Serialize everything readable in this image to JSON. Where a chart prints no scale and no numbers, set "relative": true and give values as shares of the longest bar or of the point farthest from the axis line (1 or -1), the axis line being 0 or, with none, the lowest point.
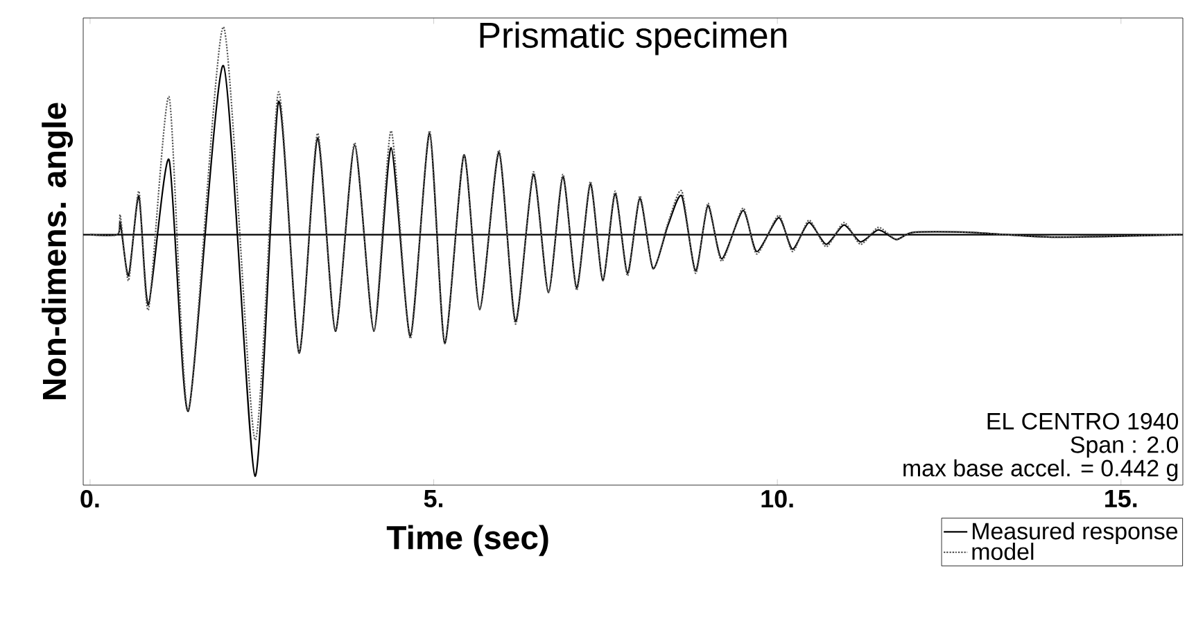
{
  "chart_data": {
    "type": "line",
    "title": "Prismatic specimen",
    "xlabel": "Time (sec)",
    "ylabel": "Non-dimens. angle",
    "annotations": [
      "EL CENTRO 1940",
      "Span : 2.0",
      "max base accel. = 0.442 g"
    ],
    "relative": true,
    "tick_labels": "x",
    "legend": "bottom right",
    "marker": "none",
    "xlim": [
      -0.1,
      15.9
    ],
    "xticks": [
      {
        "value": 0,
        "label": "0."
      },
      {
        "value": 5,
        "label": "5."
      },
      {
        "value": 10,
        "label": "10."
      },
      {
        "value": 15,
        "label": "15."
      }
    ],
    "x": [
      0,
      0.4,
      0.44,
      0.56,
      0.71,
      0.85,
      1.15,
      1.43,
      1.94,
      2.4,
      2.74,
      3.04,
      3.31,
      3.57,
      3.85,
      4.13,
      4.38,
      4.66,
      4.94,
      5.16,
      5.44,
      5.67,
      5.95,
      6.19,
      6.45,
      6.67,
      6.88,
      7.08,
      7.28,
      7.46,
      7.64,
      7.82,
      8.0,
      8.19,
      8.41,
      8.61,
      8.81,
      8.99,
      9.19,
      9.5,
      9.7,
      10.02,
      10.22,
      10.46,
      10.71,
      10.97,
      11.21,
      11.47,
      11.73,
      11.98,
      12.78,
      13.99,
      15.87
    ],
    "series": [
      {
        "name": "Measured response",
        "color": "#000000",
        "line_style": "solid",
        "values": [
          0,
          0,
          0.05,
          -0.17,
          0.16,
          -0.29,
          0.31,
          -0.73,
          0.7,
          -1.0,
          0.55,
          -0.49,
          0.4,
          -0.4,
          0.37,
          -0.4,
          0.36,
          -0.42,
          0.42,
          -0.45,
          0.33,
          -0.31,
          0.34,
          -0.36,
          0.25,
          -0.24,
          0.24,
          -0.22,
          0.21,
          -0.19,
          0.17,
          -0.16,
          0.15,
          -0.14,
          0.04,
          0.16,
          -0.15,
          0.12,
          -0.1,
          0.1,
          -0.07,
          0.07,
          -0.06,
          0.05,
          -0.04,
          0.04,
          -0.03,
          0.02,
          -0.02,
          0.01,
          0.01,
          -0.01,
          0
        ]
      },
      {
        "name": "model",
        "color": "#555555",
        "line_style": "dotted",
        "values": [
          0,
          0,
          0.08,
          -0.19,
          0.18,
          -0.31,
          0.57,
          -0.73,
          0.86,
          -0.85,
          0.59,
          -0.49,
          0.42,
          -0.4,
          0.38,
          -0.4,
          0.43,
          -0.43,
          0.43,
          -0.45,
          0.33,
          -0.31,
          0.35,
          -0.37,
          0.26,
          -0.24,
          0.25,
          -0.23,
          0.22,
          -0.19,
          0.18,
          -0.17,
          0.16,
          -0.14,
          0.05,
          0.18,
          -0.16,
          0.13,
          -0.11,
          0.11,
          -0.08,
          0.08,
          -0.07,
          0.06,
          -0.05,
          0.05,
          -0.04,
          0.03,
          -0.02,
          0.01,
          0.01,
          -0.01,
          0
        ]
      }
    ]
  }
}
